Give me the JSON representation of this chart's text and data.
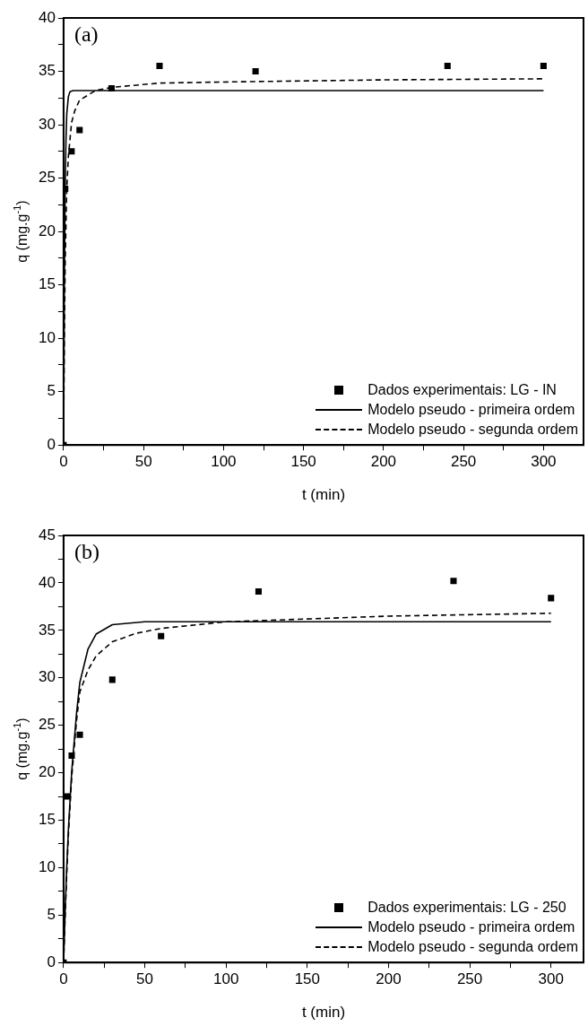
{
  "chart_data": [
    {
      "type": "scatter",
      "xlabel": "t (min)",
      "ylabel": "q (mg.g$^{-1}$)",
      "annotations": [
        "(a)"
      ],
      "legend": "bottom right",
      "grid": false,
      "xlim": [
        0,
        325
      ],
      "xticks": [
        0,
        {
          "value": 25,
          "label": null
        },
        50,
        {
          "value": 75,
          "label": null
        },
        100,
        {
          "value": 125,
          "label": null
        },
        150,
        {
          "value": 175,
          "label": null
        },
        200,
        {
          "value": 225,
          "label": null
        },
        250,
        {
          "value": 275,
          "label": null
        },
        300
      ],
      "ylim": [
        0,
        40
      ],
      "yticks": [
        0,
        {
          "value": 2.5,
          "label": null
        },
        5,
        {
          "value": 7.5,
          "label": null
        },
        10,
        {
          "value": 12.5,
          "label": null
        },
        15,
        {
          "value": 17.5,
          "label": null
        },
        20,
        {
          "value": 22.5,
          "label": null
        },
        25,
        {
          "value": 27.5,
          "label": null
        },
        30,
        {
          "value": 32.5,
          "label": null
        },
        35,
        {
          "value": 37.5,
          "label": null
        },
        40
      ],
      "series": [
        {
          "name": "Dados experimentais: LG - IN",
          "marker": "square",
          "color": "#000000",
          "x": [
            0,
            1,
            5,
            10,
            30,
            60,
            120,
            240,
            300
          ],
          "values": [
            0,
            24,
            27.5,
            29.5,
            33.4,
            35.5,
            35,
            35.5,
            35.5
          ]
        },
        {
          "name": "Modelo pseudo - primeira ordem",
          "type": "line",
          "line_style": "solid",
          "color": "#000000",
          "x": [
            0,
            0.5,
            1,
            1.5,
            2,
            3,
            4,
            6,
            10,
            30,
            100,
            300
          ],
          "values": [
            0,
            15,
            24,
            28.5,
            31,
            32.6,
            33.1,
            33.2,
            33.2,
            33.2,
            33.2,
            33.2
          ]
        },
        {
          "name": "Modelo pseudo - segunda ordem",
          "type": "line",
          "line_style": "dashed",
          "color": "#000000",
          "x": [
            0,
            0.5,
            1,
            2,
            3,
            5,
            7,
            10,
            20,
            30,
            60,
            100,
            200,
            300
          ],
          "values": [
            0,
            10,
            17,
            24,
            27,
            30.2,
            31.3,
            32.3,
            33.2,
            33.5,
            33.9,
            34.0,
            34.2,
            34.3
          ]
        }
      ]
    },
    {
      "type": "scatter",
      "xlabel": "t (min)",
      "ylabel": "q (mg.g$^{-1}$)",
      "annotations": [
        "(b)"
      ],
      "legend": "bottom right",
      "grid": false,
      "xlim": [
        0,
        320
      ],
      "xticks": [
        0,
        {
          "value": 25,
          "label": null
        },
        50,
        {
          "value": 75,
          "label": null
        },
        100,
        {
          "value": 125,
          "label": null
        },
        150,
        {
          "value": 175,
          "label": null
        },
        200,
        {
          "value": 225,
          "label": null
        },
        250,
        {
          "value": 275,
          "label": null
        },
        300
      ],
      "ylim": [
        0,
        45
      ],
      "yticks": [
        0,
        {
          "value": 2.5,
          "label": null
        },
        5,
        {
          "value": 7.5,
          "label": null
        },
        10,
        {
          "value": 12.5,
          "label": null
        },
        15,
        {
          "value": 17.5,
          "label": null
        },
        20,
        {
          "value": 22.5,
          "label": null
        },
        25,
        {
          "value": 27.5,
          "label": null
        },
        30,
        {
          "value": 32.5,
          "label": null
        },
        35,
        {
          "value": 37.5,
          "label": null
        },
        40,
        {
          "value": 42.5,
          "label": null
        },
        45
      ],
      "series": [
        {
          "name": "Dados experimentais: LG - 250",
          "marker": "square",
          "color": "#000000",
          "x": [
            0,
            2,
            5,
            10,
            30,
            60,
            120,
            240,
            300
          ],
          "values": [
            0,
            17.5,
            21.8,
            24,
            29.8,
            34.4,
            39.1,
            40.2,
            38.4
          ]
        },
        {
          "name": "Modelo pseudo - primeira ordem",
          "type": "line",
          "line_style": "solid",
          "color": "#000000",
          "x": [
            0,
            1,
            2,
            3,
            5,
            8,
            10,
            15,
            20,
            30,
            50,
            300
          ],
          "values": [
            0,
            5.5,
            10.2,
            14.1,
            20.1,
            26.3,
            29.5,
            33.0,
            34.6,
            35.6,
            35.9,
            35.9
          ]
        },
        {
          "name": "Modelo pseudo - segunda ordem",
          "type": "line",
          "line_style": "dashed",
          "color": "#000000",
          "x": [
            0,
            1,
            2,
            3,
            5,
            8,
            10,
            15,
            20,
            30,
            45,
            60,
            100,
            150,
            200,
            300
          ],
          "values": [
            0,
            5,
            9.5,
            13.5,
            19.5,
            25.5,
            28.5,
            30.8,
            32.3,
            33.8,
            34.7,
            35.2,
            35.9,
            36.2,
            36.5,
            36.8
          ]
        }
      ]
    }
  ]
}
